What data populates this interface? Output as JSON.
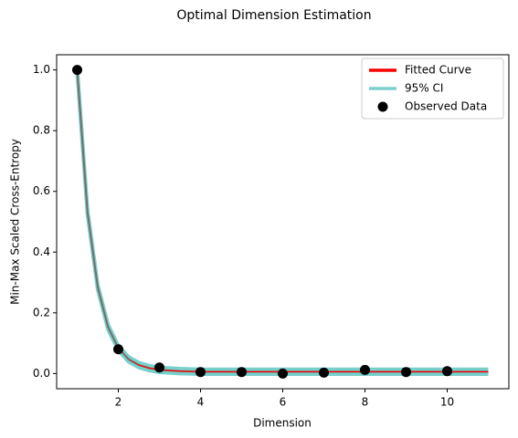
{
  "chart_data": {
    "type": "line",
    "title": "Optimal Dimension Estimation",
    "xlabel": "Dimension",
    "ylabel": "Min-Max Scaled Cross-Entropy",
    "xlim": [
      0.5,
      11.5
    ],
    "ylim": [
      -0.05,
      1.05
    ],
    "xticks": [
      2,
      4,
      6,
      8,
      10
    ],
    "yticks": [
      {
        "value": 0,
        "label": "0.0"
      },
      {
        "value": 0.2,
        "label": "0.2"
      },
      {
        "value": 0.4,
        "label": "0.4"
      },
      {
        "value": 0.6,
        "label": "0.6"
      },
      {
        "value": 0.8,
        "label": "0.8"
      },
      {
        "value": 1,
        "label": "1.0"
      }
    ],
    "legend": "upper right",
    "x": [
      1,
      1.25,
      1.5,
      1.75,
      2,
      2.25,
      2.5,
      2.75,
      3,
      3.5,
      4,
      5,
      6,
      7,
      8,
      9,
      10,
      11
    ],
    "series": [
      {
        "name": "Fitted Curve",
        "color": "#ff0000",
        "values": [
          1.0,
          0.532,
          0.284,
          0.153,
          0.084,
          0.047,
          0.028,
          0.018,
          0.012,
          0.008,
          0.006,
          0.006,
          0.006,
          0.006,
          0.006,
          0.006,
          0.006,
          0.006
        ]
      },
      {
        "name": "95% CI",
        "color": "#20b2aa",
        "alpha": 0.6,
        "lower": [
          0.992,
          0.524,
          0.276,
          0.145,
          0.076,
          0.039,
          0.02,
          0.01,
          0.004,
          0.0,
          -0.002,
          -0.002,
          -0.002,
          -0.002,
          -0.002,
          -0.002,
          -0.002,
          -0.002
        ],
        "upper": [
          1.008,
          0.54,
          0.292,
          0.161,
          0.092,
          0.055,
          0.036,
          0.026,
          0.02,
          0.016,
          0.014,
          0.014,
          0.014,
          0.014,
          0.014,
          0.014,
          0.014,
          0.014
        ]
      },
      {
        "name": "Observed Data",
        "color": "#000000",
        "marker": "o",
        "x": [
          1,
          2,
          3,
          4,
          5,
          6,
          7,
          8,
          9,
          10
        ],
        "values": [
          1.0,
          0.08,
          0.02,
          0.005,
          0.005,
          0.0,
          0.003,
          0.012,
          0.005,
          0.008
        ]
      }
    ]
  }
}
